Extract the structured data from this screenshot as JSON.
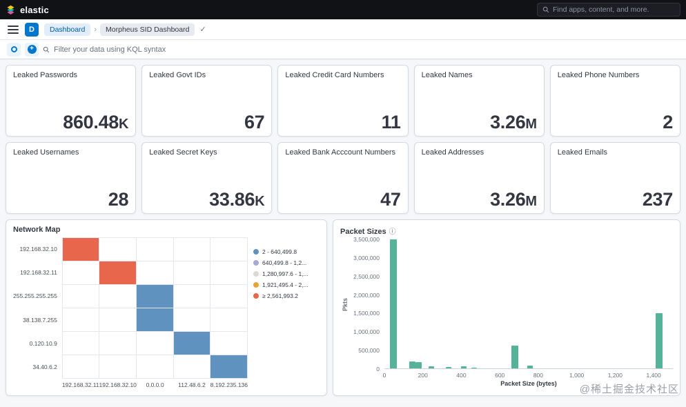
{
  "topbar": {
    "brand": "elastic",
    "search_placeholder": "Find apps, content, and more."
  },
  "header": {
    "app_badge": "D",
    "breadcrumbs": [
      "Dashboard",
      "Morpheus SID Dashboard"
    ]
  },
  "filter_bar": {
    "kql_placeholder": "Filter your data using KQL syntax"
  },
  "icons": {
    "check": "✓",
    "info": "ⓘ",
    "plus": "+"
  },
  "metrics": [
    {
      "title": "Leaked Passwords",
      "value": "860.48",
      "suffix": "K"
    },
    {
      "title": "Leaked Govt IDs",
      "value": "67",
      "suffix": ""
    },
    {
      "title": "Leaked Credit Card Numbers",
      "value": "11",
      "suffix": ""
    },
    {
      "title": "Leaked Names",
      "value": "3.26",
      "suffix": "M"
    },
    {
      "title": "Leaked Phone Numbers",
      "value": "2",
      "suffix": ""
    },
    {
      "title": "Leaked Usernames",
      "value": "28",
      "suffix": ""
    },
    {
      "title": "Leaked Secret Keys",
      "value": "33.86",
      "suffix": "K"
    },
    {
      "title": "Leaked Bank Acccount Numbers",
      "value": "47",
      "suffix": ""
    },
    {
      "title": "Leaked Addresses",
      "value": "3.26",
      "suffix": "M"
    },
    {
      "title": "Leaked Emails",
      "value": "237",
      "suffix": ""
    }
  ],
  "chart_data": [
    {
      "type": "heatmap",
      "title": "Network Map",
      "y_categories": [
        "192.168.32.10",
        "192.168.32.11",
        "255.255.255.255",
        "38.138.7.255",
        "0.120.10.9",
        "34.40.6.2"
      ],
      "x_categories": [
        "192.168.32.11",
        "192.168.32.10",
        "0.0.0.0",
        "112.48.6.2",
        "8.192.235.136"
      ],
      "cells": [
        {
          "row": 0,
          "col": 0,
          "level": "high"
        },
        {
          "row": 1,
          "col": 1,
          "level": "high"
        },
        {
          "row": 2,
          "col": 2,
          "level": "low"
        },
        {
          "row": 3,
          "col": 2,
          "level": "low"
        },
        {
          "row": 4,
          "col": 3,
          "level": "low"
        },
        {
          "row": 5,
          "col": 4,
          "level": "low"
        }
      ],
      "cell_colors": {
        "high": "#E7664C",
        "low": "#6092C0"
      },
      "legend_position": "right",
      "legend": [
        {
          "label": "2 - 640,499.8",
          "color": "#6092C0"
        },
        {
          "label": "640,499.8 - 1,2...",
          "color": "#A6A8D5"
        },
        {
          "label": "1,280,997.6 - 1,...",
          "color": "#DCD8D2"
        },
        {
          "label": "1,921,495.4 - 2,...",
          "color": "#E7A23C"
        },
        {
          "label": "≥ 2,561,993.2",
          "color": "#E7664C"
        }
      ]
    },
    {
      "type": "bar",
      "title": "Packet Sizes",
      "xlabel": "Packet Size (bytes)",
      "ylabel": "Pkts",
      "xlim": [
        0,
        1500
      ],
      "ylim": [
        0,
        3500000
      ],
      "grid": false,
      "bar_color": "#54B399",
      "y_ticks": [
        {
          "value": 0,
          "label": "0"
        },
        {
          "value": 500000,
          "label": "500,000"
        },
        {
          "value": 1000000,
          "label": "1,000,000"
        },
        {
          "value": 1500000,
          "label": "1,500,000"
        },
        {
          "value": 2000000,
          "label": "2,000,000"
        },
        {
          "value": 2500000,
          "label": "2,500,000"
        },
        {
          "value": 3000000,
          "label": "3,000,000"
        },
        {
          "value": 3500000,
          "label": "3,500,000"
        }
      ],
      "x_ticks": [
        {
          "value": 0,
          "label": "0"
        },
        {
          "value": 200,
          "label": "200"
        },
        {
          "value": 400,
          "label": "400"
        },
        {
          "value": 600,
          "label": "600"
        },
        {
          "value": 800,
          "label": "800"
        },
        {
          "value": 1000,
          "label": "1,000"
        },
        {
          "value": 1200,
          "label": "1,200"
        },
        {
          "value": 1400,
          "label": "1,400"
        }
      ],
      "bars": [
        {
          "x": 30,
          "width": 35,
          "pkts": 3500000
        },
        {
          "x": 130,
          "width": 30,
          "pkts": 185000
        },
        {
          "x": 163,
          "width": 30,
          "pkts": 160000
        },
        {
          "x": 228,
          "width": 30,
          "pkts": 60000
        },
        {
          "x": 318,
          "width": 30,
          "pkts": 35000
        },
        {
          "x": 398,
          "width": 30,
          "pkts": 50000
        },
        {
          "x": 452,
          "width": 30,
          "pkts": 28000
        },
        {
          "x": 660,
          "width": 35,
          "pkts": 620000
        },
        {
          "x": 742,
          "width": 30,
          "pkts": 70000
        },
        {
          "x": 1412,
          "width": 35,
          "pkts": 1500000
        }
      ]
    }
  ],
  "watermark": "@稀土掘金技术社区"
}
